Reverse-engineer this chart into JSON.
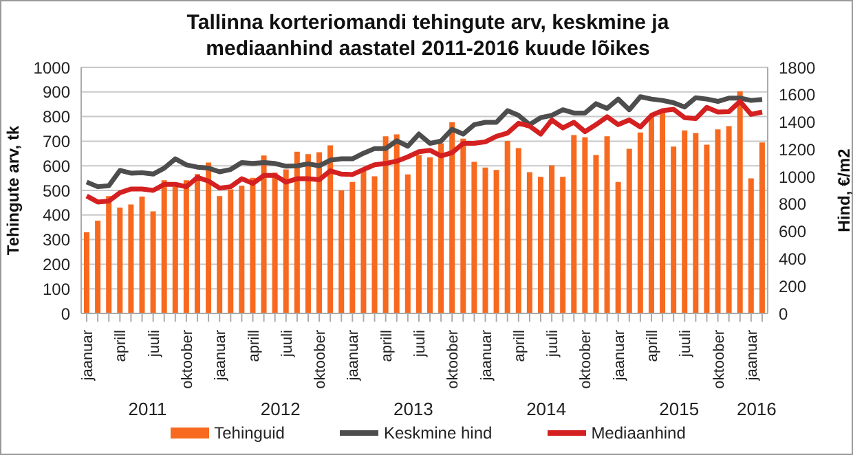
{
  "chart_data": {
    "type": "bar",
    "title": "Tallinna korteriomandi tehingute arv, keskmine ja mediaanhind aastatel 2011-2016 kuude lõikes",
    "categories": [
      "jaanuar",
      null,
      null,
      "aprill",
      null,
      null,
      "juuli",
      null,
      null,
      "oktoober",
      null,
      null,
      "jaanuar",
      null,
      null,
      "aprill",
      null,
      null,
      "juuli",
      null,
      null,
      "oktoober",
      null,
      null,
      "jaanuar",
      null,
      null,
      "aprill",
      null,
      null,
      "juuli",
      null,
      null,
      "oktoober",
      null,
      null,
      "jaanuar",
      null,
      null,
      "aprill",
      null,
      null,
      "juuli",
      null,
      null,
      "oktoober",
      null,
      null,
      "jaanuar",
      null,
      null,
      "aprill",
      null,
      null,
      "juuli",
      null,
      null,
      "oktoober",
      null,
      null,
      "jaanuar",
      null
    ],
    "series": [
      {
        "name": "Tehinguid",
        "color": "#f7691e",
        "values": [
          330,
          377,
          477,
          430,
          443,
          475,
          415,
          541,
          515,
          541,
          566,
          613,
          477,
          504,
          519,
          551,
          642,
          572,
          585,
          657,
          647,
          655,
          683,
          500,
          534,
          579,
          557,
          720,
          728,
          565,
          644,
          634,
          691,
          777,
          710,
          616,
          593,
          583,
          701,
          672,
          574,
          555,
          602,
          555,
          725,
          716,
          644,
          720,
          534,
          669,
          735,
          805,
          828,
          678,
          744,
          733,
          686,
          748,
          761,
          903,
          549,
          695
        ]
      },
      {
        "name": "Keskmine hind",
        "type": "line",
        "axis": "y2",
        "color": "#4d4d4d",
        "values": [
          961,
          927,
          934,
          1046,
          1026,
          1029,
          1019,
          1063,
          1131,
          1087,
          1070,
          1063,
          1036,
          1053,
          1104,
          1097,
          1104,
          1097,
          1077,
          1080,
          1094,
          1080,
          1121,
          1131,
          1131,
          1172,
          1206,
          1206,
          1263,
          1223,
          1312,
          1244,
          1261,
          1347,
          1312,
          1381,
          1398,
          1398,
          1483,
          1449,
          1381,
          1432,
          1449,
          1490,
          1466,
          1466,
          1534,
          1500,
          1568,
          1490,
          1585,
          1568,
          1558,
          1541,
          1510,
          1578,
          1568,
          1551,
          1575,
          1575,
          1558,
          1565
        ]
      },
      {
        "name": "Mediaanhind",
        "type": "line",
        "axis": "y2",
        "color": "#d42020",
        "values": [
          859,
          815,
          822,
          883,
          910,
          910,
          900,
          944,
          944,
          927,
          995,
          968,
          917,
          927,
          985,
          951,
          1009,
          1009,
          961,
          985,
          985,
          978,
          1043,
          1019,
          1016,
          1053,
          1087,
          1097,
          1114,
          1145,
          1183,
          1193,
          1152,
          1176,
          1244,
          1244,
          1255,
          1295,
          1319,
          1391,
          1370,
          1312,
          1415,
          1357,
          1398,
          1330,
          1381,
          1439,
          1381,
          1415,
          1364,
          1449,
          1483,
          1493,
          1432,
          1425,
          1507,
          1473,
          1476,
          1551,
          1456,
          1473
        ]
      }
    ],
    "annotations": [
      "2011",
      "2012",
      "2013",
      "2014",
      "2015",
      "2016"
    ],
    "ylabel": "Tehingute arv, tk",
    "y2label": "Hind, €/m2",
    "ylim": [
      0,
      1000
    ],
    "yticks": [
      0,
      100,
      200,
      300,
      400,
      500,
      600,
      700,
      800,
      900,
      1000
    ],
    "y2lim": [
      0,
      1800
    ],
    "y2ticks": [
      0,
      200,
      400,
      600,
      800,
      1000,
      1200,
      1400,
      1600,
      1800
    ],
    "grid": "y",
    "legend": "bottom",
    "marker": "none",
    "line_style": "solid"
  }
}
